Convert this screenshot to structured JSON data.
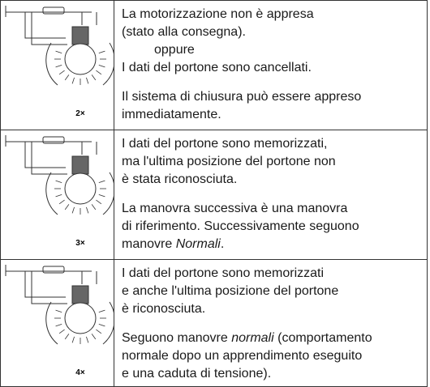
{
  "rows": [
    {
      "icon_label": "2×",
      "paragraphs": [
        [
          "La motorizzazione non è appresa",
          "(stato alla consegna).",
          "oppure",
          "I dati del portone sono cancellati."
        ],
        [
          "Il sistema di chiusura può essere appreso",
          "immediatamente."
        ]
      ]
    },
    {
      "icon_label": "3×",
      "paragraphs": [
        [
          "I dati del portone sono memorizzati,",
          "ma l'ultima posizione del portone non",
          "è stata riconosciuta."
        ],
        [
          "La manovra successiva è una manovra",
          "di riferimento. Successivamente seguono",
          [
            "manovre ",
            "Normali",
            "."
          ]
        ]
      ]
    },
    {
      "icon_label": "4×",
      "paragraphs": [
        [
          "I dati del portone sono memorizzati",
          "e anche l'ultima posizione del portone",
          "è riconosciuta."
        ],
        [
          [
            "Seguono manovre ",
            "normali",
            " (comportamento"
          ],
          "normale dopo un apprendimento eseguito",
          "e una caduta di tensione)."
        ]
      ]
    }
  ]
}
